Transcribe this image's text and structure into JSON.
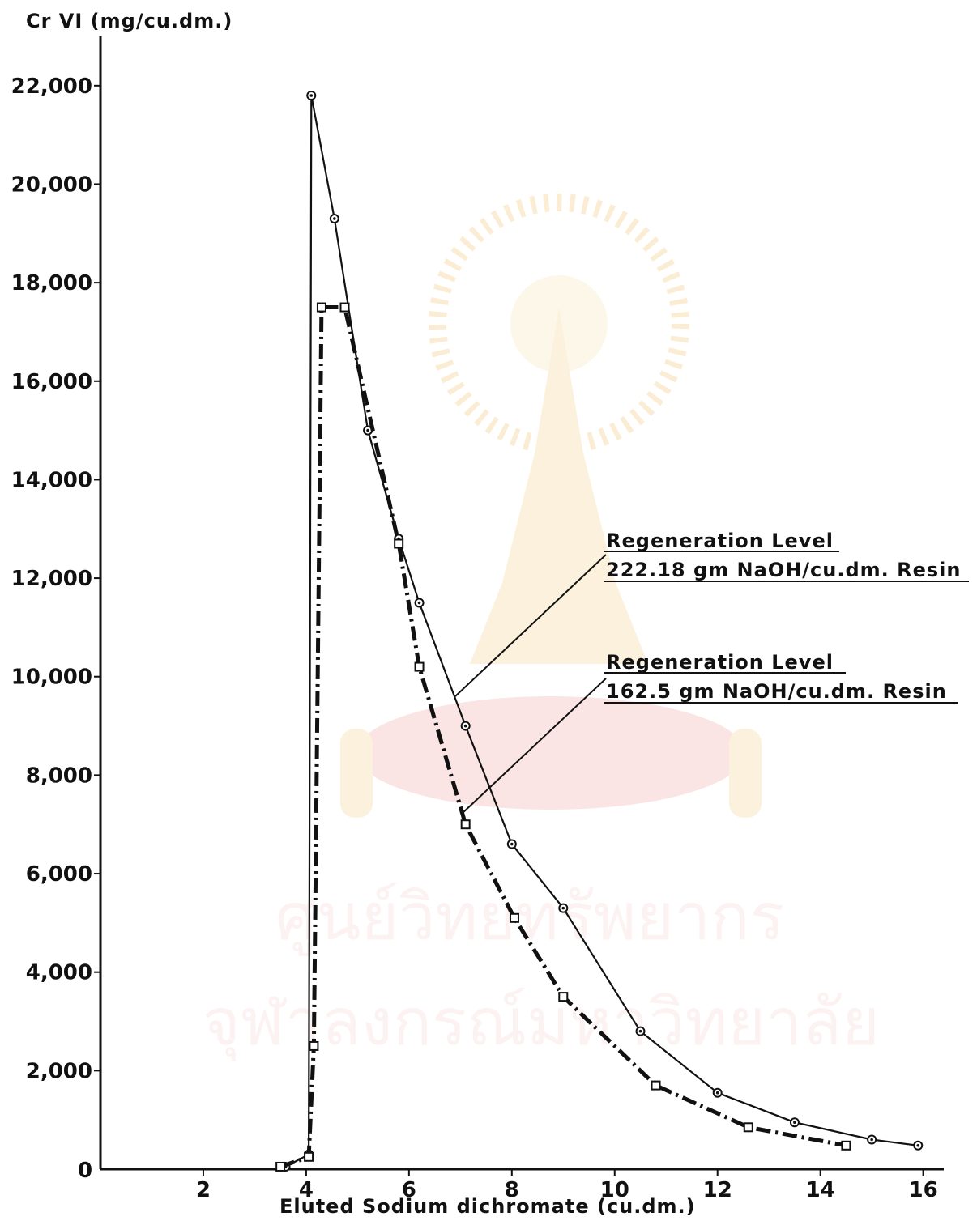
{
  "chart_data": {
    "type": "line",
    "xlabel": "Eluted  Sodium  dichromate (cu.dm.)",
    "ylabel": "Cr VI (mg/cu.dm.)",
    "xlim": [
      0,
      16.4
    ],
    "ylim": [
      0,
      23000
    ],
    "x_ticks": [
      {
        "value": 0,
        "label": "0"
      },
      {
        "value": 2,
        "label": "2"
      },
      {
        "value": 4,
        "label": "4"
      },
      {
        "value": 6,
        "label": "6"
      },
      {
        "value": 8,
        "label": "8"
      },
      {
        "value": 10,
        "label": "10"
      },
      {
        "value": 12,
        "label": "12"
      },
      {
        "value": 14,
        "label": "14"
      },
      {
        "value": 16,
        "label": "16"
      }
    ],
    "y_ticks": [
      {
        "value": 2000,
        "label": "2,000"
      },
      {
        "value": 4000,
        "label": "4,000"
      },
      {
        "value": 6000,
        "label": "6,000"
      },
      {
        "value": 8000,
        "label": "8,000"
      },
      {
        "value": 10000,
        "label": "10,000"
      },
      {
        "value": 12000,
        "label": "12,000"
      },
      {
        "value": 14000,
        "label": "14,000"
      },
      {
        "value": 16000,
        "label": "16,000"
      },
      {
        "value": 18000,
        "label": "18,000"
      },
      {
        "value": 20000,
        "label": "20,000"
      },
      {
        "value": 22000,
        "label": "22,000"
      }
    ],
    "grid": false,
    "series": [
      {
        "name": "Regeneration Level 222.18 gm NaOH/cu.dm. Resin",
        "line_style": "solid",
        "marker": "open-circle-dot",
        "points": [
          [
            3.6,
            50
          ],
          [
            4.05,
            300
          ],
          [
            4.1,
            21800
          ],
          [
            4.55,
            19300
          ],
          [
            5.2,
            15000
          ],
          [
            5.8,
            12800
          ],
          [
            6.2,
            11500
          ],
          [
            7.1,
            9000
          ],
          [
            8.0,
            6600
          ],
          [
            9.0,
            5300
          ],
          [
            10.5,
            2800
          ],
          [
            12.0,
            1550
          ],
          [
            13.5,
            950
          ],
          [
            15.0,
            600
          ],
          [
            15.9,
            480
          ]
        ]
      },
      {
        "name": "Regeneration Level 162.5 gm NaOH/cu.dm. Resin",
        "line_style": "dash-dot",
        "marker": "open-square",
        "points": [
          [
            3.5,
            50
          ],
          [
            4.05,
            250
          ],
          [
            4.15,
            2500
          ],
          [
            4.3,
            17500
          ],
          [
            4.75,
            17500
          ],
          [
            5.8,
            12700
          ],
          [
            6.2,
            10200
          ],
          [
            7.1,
            7000
          ],
          [
            8.05,
            5100
          ],
          [
            9.0,
            3500
          ],
          [
            10.8,
            1700
          ],
          [
            12.6,
            850
          ],
          [
            14.5,
            480
          ]
        ]
      }
    ],
    "annotations": [
      {
        "line1": "Regeneration  Level",
        "line2": "222.18  gm NaOH/cu.dm. Resin",
        "series": 0
      },
      {
        "line1": "Regeneration  Level",
        "line2": "162.5  gm NaOH/cu.dm. Resin",
        "series": 1
      }
    ]
  },
  "colors": {
    "ink": "#111111",
    "watermark": "#f2c6c6"
  },
  "watermark": {
    "icon": "institution-seal-icon",
    "line1": "ศูนย์วิทยทรัพยากร",
    "line2": "จุฬาลงกรณ์มหาวิทยาลัย"
  }
}
